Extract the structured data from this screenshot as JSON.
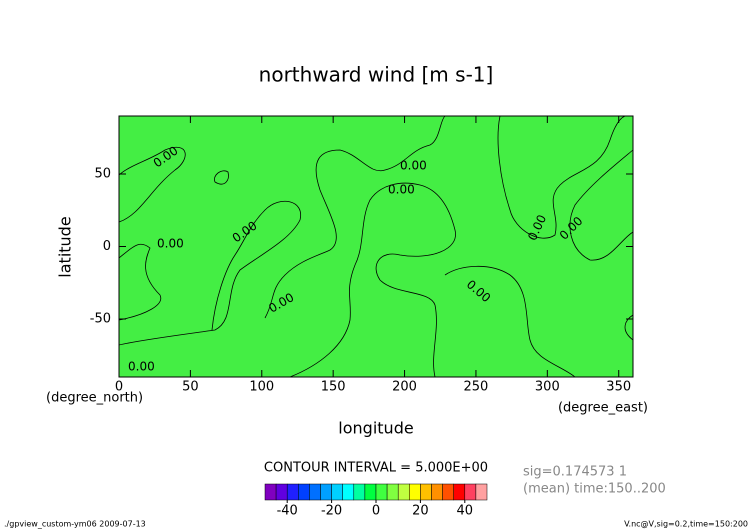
{
  "chart_data": {
    "type": "contour",
    "title": "northward wind [m s-1]",
    "xlabel": "longitude",
    "ylabel": "latitude",
    "xunit": "(degree_east)",
    "yunit": "(degree_north)",
    "xlim": [
      0,
      360
    ],
    "ylim": [
      -90,
      90
    ],
    "xticks": [
      0,
      50,
      100,
      150,
      200,
      250,
      300,
      350
    ],
    "yticks": [
      -50,
      0,
      50
    ],
    "fill_color": "#44ee44",
    "contour_labels": [
      "0.00",
      "0.00",
      "0.00",
      "0.00",
      "0.00",
      "0.00",
      "0.00",
      "0.00",
      "0.00",
      "0.00"
    ],
    "contour_interval": "CONTOUR INTERVAL = 5.000E+00",
    "colorbar": {
      "levels": [
        -50,
        -45,
        -40,
        -35,
        -30,
        -25,
        -20,
        -15,
        -10,
        -5,
        0,
        5,
        10,
        15,
        20,
        25,
        30,
        35,
        40,
        45,
        50
      ],
      "colors": [
        "#8000c0",
        "#6000e0",
        "#2020ff",
        "#0040ff",
        "#0070ff",
        "#00a0ff",
        "#00d0ff",
        "#00ffff",
        "#00ffa0",
        "#00ff40",
        "#40ff40",
        "#80ff40",
        "#c0ff40",
        "#ffff00",
        "#ffc000",
        "#ff9000",
        "#ff5000",
        "#ff0000",
        "#ff4060",
        "#ffa0a0"
      ],
      "ticks": [
        -40,
        -20,
        0,
        20,
        40
      ]
    },
    "notes": [
      "sig=0.174573 1",
      "(mean) time:150..200"
    ],
    "footer_left": "./gpview_custom-ym06  2009-07-13",
    "footer_right": "V.nc@V,sig=0.2,time=150:200"
  }
}
